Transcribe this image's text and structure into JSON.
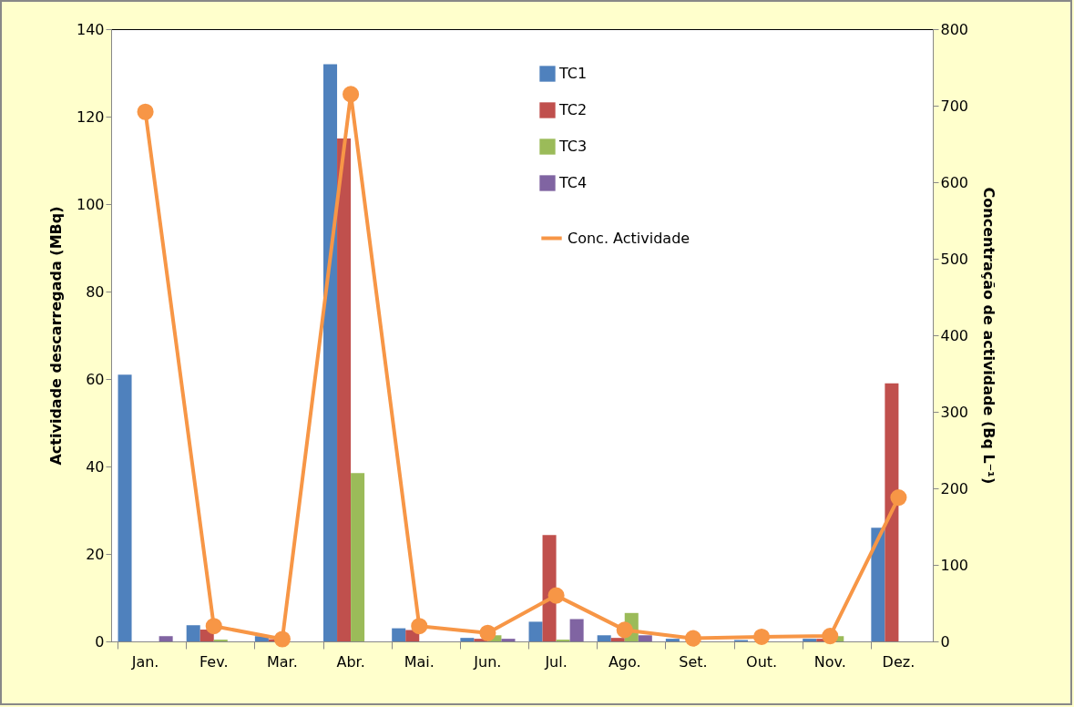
{
  "chart_data": {
    "type": "bar",
    "ylabel": "Actividade descarregada (MBq)",
    "y2label": "Concentração de actividade (Bq L⁻¹)",
    "categories": [
      "Jan.",
      "Fev.",
      "Mar.",
      "Abr.",
      "Mai.",
      "Jun.",
      "Jul.",
      "Ago.",
      "Set.",
      "Out.",
      "Nov.",
      "Dez."
    ],
    "series": [
      {
        "name": "TC1",
        "color": "#4f81bd",
        "values": [
          61,
          3.7,
          1.2,
          132,
          3.0,
          0.8,
          4.5,
          1.4,
          0.6,
          0.3,
          0.6,
          26
        ]
      },
      {
        "name": "TC2",
        "color": "#c0504d",
        "values": [
          0,
          2.7,
          0.5,
          115,
          2.6,
          0.6,
          24.3,
          0.8,
          null,
          null,
          0.6,
          59
        ]
      },
      {
        "name": "TC3",
        "color": "#9bbb59",
        "values": [
          0,
          0.4,
          0,
          38.5,
          0,
          1.4,
          0.4,
          6.5,
          null,
          null,
          1.2,
          0
        ]
      },
      {
        "name": "TC4",
        "color": "#8064a2",
        "values": [
          1.2,
          0,
          0,
          0,
          0,
          0.6,
          5.1,
          1.4,
          null,
          0,
          0,
          0
        ]
      },
      {
        "name": "Conc. Actividade",
        "color": "#f79646",
        "type": "line",
        "axis": "y2",
        "marker": "circle",
        "values": [
          692,
          20,
          3,
          715,
          20,
          11,
          60,
          15,
          4,
          6,
          7,
          188
        ]
      }
    ],
    "ylim": [
      0,
      140
    ],
    "yticks": [
      0,
      20,
      40,
      60,
      80,
      100,
      120,
      140
    ],
    "y2lim": [
      0,
      800
    ],
    "y2ticks": [
      0,
      100,
      200,
      300,
      400,
      500,
      600,
      700,
      800
    ],
    "grid": false,
    "legend": "top"
  }
}
